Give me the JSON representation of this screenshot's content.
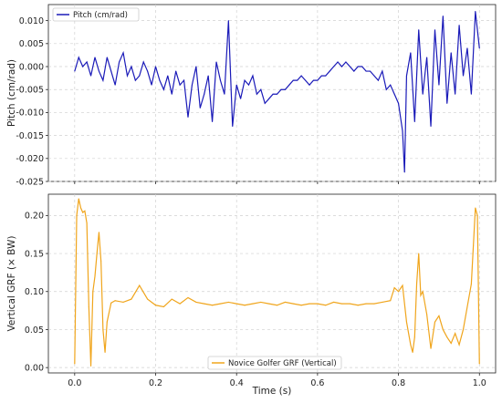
{
  "chart_data": [
    {
      "type": "line",
      "ylabel": "Pitch (cm/rad)",
      "xlabel": "",
      "xlim": [
        -0.065,
        1.04
      ],
      "ylim": [
        -0.025,
        0.0135
      ],
      "xticks": [
        "0.0",
        "0.2",
        "0.4",
        "0.6",
        "0.8",
        "1.0"
      ],
      "yticks": [
        "0.010",
        "0.005",
        "0.000",
        "-0.005",
        "-0.010",
        "-0.015",
        "-0.020",
        "-0.025"
      ],
      "grid": true,
      "legend_position": "top-left",
      "series": [
        {
          "name": "Pitch (cm/rad)",
          "color": "#1a1ab8",
          "x": [
            0.0,
            0.01,
            0.02,
            0.03,
            0.04,
            0.05,
            0.06,
            0.07,
            0.08,
            0.09,
            0.1,
            0.11,
            0.12,
            0.13,
            0.14,
            0.15,
            0.16,
            0.17,
            0.18,
            0.19,
            0.2,
            0.21,
            0.22,
            0.23,
            0.24,
            0.25,
            0.26,
            0.27,
            0.28,
            0.29,
            0.3,
            0.31,
            0.32,
            0.33,
            0.34,
            0.35,
            0.36,
            0.37,
            0.38,
            0.39,
            0.4,
            0.41,
            0.42,
            0.43,
            0.44,
            0.45,
            0.46,
            0.47,
            0.48,
            0.49,
            0.5,
            0.51,
            0.52,
            0.53,
            0.54,
            0.55,
            0.56,
            0.57,
            0.58,
            0.59,
            0.6,
            0.61,
            0.62,
            0.63,
            0.64,
            0.65,
            0.66,
            0.67,
            0.68,
            0.69,
            0.7,
            0.71,
            0.72,
            0.73,
            0.74,
            0.75,
            0.76,
            0.77,
            0.78,
            0.79,
            0.8,
            0.81,
            0.815,
            0.82,
            0.83,
            0.84,
            0.85,
            0.86,
            0.87,
            0.88,
            0.89,
            0.9,
            0.91,
            0.92,
            0.93,
            0.94,
            0.95,
            0.96,
            0.97,
            0.98,
            0.99,
            1.0
          ],
          "y": [
            -0.001,
            0.002,
            0.0,
            0.001,
            -0.002,
            0.002,
            -0.001,
            -0.003,
            0.002,
            -0.001,
            -0.004,
            0.001,
            0.003,
            -0.002,
            0.0,
            -0.003,
            -0.002,
            0.001,
            -0.001,
            -0.004,
            0.0,
            -0.003,
            -0.005,
            -0.002,
            -0.006,
            -0.001,
            -0.004,
            -0.003,
            -0.011,
            -0.004,
            0.0,
            -0.009,
            -0.006,
            -0.002,
            -0.012,
            0.001,
            -0.003,
            -0.006,
            0.01,
            -0.013,
            -0.004,
            -0.007,
            -0.003,
            -0.004,
            -0.002,
            -0.006,
            -0.005,
            -0.008,
            -0.007,
            -0.006,
            -0.006,
            -0.005,
            -0.005,
            -0.004,
            -0.003,
            -0.003,
            -0.002,
            -0.003,
            -0.004,
            -0.003,
            -0.003,
            -0.002,
            -0.002,
            -0.001,
            0.0,
            0.001,
            0.0,
            0.001,
            0.0,
            -0.001,
            0.0,
            0.0,
            -0.001,
            -0.001,
            -0.002,
            -0.003,
            -0.001,
            -0.005,
            -0.004,
            -0.006,
            -0.008,
            -0.014,
            -0.023,
            -0.002,
            0.003,
            -0.012,
            0.008,
            -0.006,
            0.002,
            -0.013,
            0.008,
            -0.004,
            0.011,
            -0.008,
            0.003,
            -0.006,
            0.009,
            -0.002,
            0.004,
            -0.006,
            0.012,
            0.004
          ]
        }
      ]
    },
    {
      "type": "line",
      "ylabel": "Vertical GRF (× BW)",
      "xlabel": "Time (s)",
      "xlim": [
        -0.065,
        1.04
      ],
      "ylim": [
        -0.007,
        0.228
      ],
      "xticks": [
        "0.0",
        "0.2",
        "0.4",
        "0.6",
        "0.8",
        "1.0"
      ],
      "yticks": [
        "0.20",
        "0.15",
        "0.10",
        "0.05",
        "0.00"
      ],
      "grid": true,
      "legend_position": "bottom-center",
      "series": [
        {
          "name": "Novice Golfer GRF (Vertical)",
          "color": "#f0a51c",
          "x": [
            0.0,
            0.005,
            0.01,
            0.015,
            0.02,
            0.025,
            0.03,
            0.035,
            0.04,
            0.045,
            0.05,
            0.055,
            0.06,
            0.065,
            0.07,
            0.075,
            0.08,
            0.09,
            0.1,
            0.12,
            0.14,
            0.16,
            0.18,
            0.2,
            0.22,
            0.24,
            0.26,
            0.28,
            0.3,
            0.32,
            0.34,
            0.36,
            0.38,
            0.4,
            0.42,
            0.44,
            0.46,
            0.48,
            0.5,
            0.52,
            0.54,
            0.56,
            0.58,
            0.6,
            0.62,
            0.64,
            0.66,
            0.68,
            0.7,
            0.72,
            0.74,
            0.76,
            0.78,
            0.79,
            0.8,
            0.81,
            0.82,
            0.83,
            0.835,
            0.84,
            0.845,
            0.85,
            0.855,
            0.86,
            0.87,
            0.88,
            0.89,
            0.9,
            0.91,
            0.92,
            0.93,
            0.94,
            0.95,
            0.96,
            0.97,
            0.98,
            0.985,
            0.99,
            0.995,
            1.0
          ],
          "y": [
            0.005,
            0.2,
            0.222,
            0.21,
            0.204,
            0.206,
            0.19,
            0.08,
            0.002,
            0.1,
            0.12,
            0.15,
            0.178,
            0.14,
            0.05,
            0.02,
            0.06,
            0.085,
            0.088,
            0.086,
            0.09,
            0.108,
            0.09,
            0.082,
            0.08,
            0.09,
            0.084,
            0.092,
            0.086,
            0.084,
            0.082,
            0.084,
            0.086,
            0.084,
            0.082,
            0.084,
            0.086,
            0.084,
            0.082,
            0.086,
            0.084,
            0.082,
            0.084,
            0.084,
            0.082,
            0.086,
            0.084,
            0.084,
            0.082,
            0.084,
            0.084,
            0.086,
            0.088,
            0.105,
            0.1,
            0.108,
            0.06,
            0.03,
            0.02,
            0.04,
            0.11,
            0.15,
            0.095,
            0.1,
            0.07,
            0.025,
            0.06,
            0.068,
            0.05,
            0.04,
            0.032,
            0.045,
            0.03,
            0.05,
            0.08,
            0.11,
            0.16,
            0.21,
            0.2,
            0.005
          ]
        }
      ]
    }
  ]
}
